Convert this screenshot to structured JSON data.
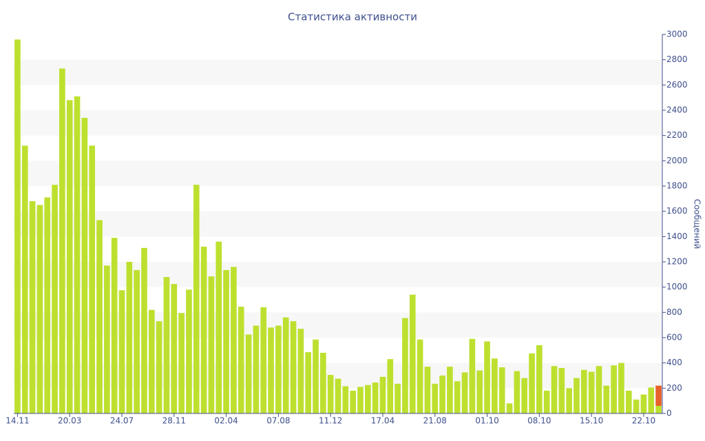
{
  "chart_data": {
    "type": "bar",
    "title": "Статистика активности",
    "y_axis_label": "Сообщений",
    "categories": [
      "14.11",
      null,
      null,
      null,
      null,
      null,
      null,
      "20.03",
      null,
      null,
      null,
      null,
      null,
      null,
      "24.07",
      null,
      null,
      null,
      null,
      null,
      null,
      "28.11",
      null,
      null,
      null,
      null,
      null,
      null,
      "02.04",
      null,
      null,
      null,
      null,
      null,
      null,
      "07.08",
      null,
      null,
      null,
      null,
      null,
      null,
      "11.12",
      null,
      null,
      null,
      null,
      null,
      null,
      "17.04",
      null,
      null,
      null,
      null,
      null,
      null,
      "21.08",
      null,
      null,
      null,
      null,
      null,
      null,
      "01.10",
      null,
      null,
      null,
      null,
      null,
      null,
      "08.10",
      null,
      null,
      null,
      null,
      null,
      null,
      "15.10",
      null,
      null,
      null,
      null,
      null,
      null,
      "22.10",
      null,
      null
    ],
    "series": [
      {
        "color": "#bde02f",
        "values": [
          2960,
          2120,
          1680,
          1650,
          1710,
          1810,
          2730,
          2480,
          2510,
          2340,
          2120,
          1530,
          1170,
          1390,
          975,
          1200,
          1135,
          1310,
          820,
          730,
          1080,
          1025,
          795,
          980,
          1810,
          1320,
          1085,
          1360,
          1135,
          1160,
          845,
          625,
          695,
          840,
          680,
          695,
          760,
          730,
          670,
          485,
          585,
          480,
          305,
          275,
          215,
          180,
          210,
          225,
          245,
          290,
          430,
          235,
          755,
          940,
          585,
          370,
          235,
          300,
          370,
          255,
          325,
          590,
          340,
          570,
          435,
          365,
          80,
          335,
          280,
          475,
          540,
          180,
          375,
          360,
          200,
          280,
          345,
          330,
          375,
          220,
          380,
          400,
          180,
          110,
          150,
          205,
          60
        ]
      },
      {
        "color": "#e8622c",
        "values": [
          null,
          null,
          null,
          null,
          null,
          null,
          null,
          null,
          null,
          null,
          null,
          null,
          null,
          null,
          null,
          null,
          null,
          null,
          null,
          null,
          null,
          null,
          null,
          null,
          null,
          null,
          null,
          null,
          null,
          null,
          null,
          null,
          null,
          null,
          null,
          null,
          null,
          null,
          null,
          null,
          null,
          null,
          null,
          null,
          null,
          null,
          null,
          null,
          null,
          null,
          null,
          null,
          null,
          null,
          null,
          null,
          null,
          null,
          null,
          null,
          null,
          null,
          null,
          null,
          null,
          null,
          null,
          null,
          null,
          null,
          null,
          null,
          null,
          null,
          null,
          null,
          null,
          null,
          null,
          null,
          null,
          null,
          null,
          null,
          null,
          null,
          160
        ]
      }
    ],
    "ylim": [
      0,
      3000
    ],
    "yticks": [
      0,
      200,
      400,
      600,
      800,
      1000,
      1200,
      1400,
      1600,
      1800,
      2000,
      2200,
      2400,
      2600,
      2800,
      3000
    ],
    "stacked": true,
    "grid_bands": true
  }
}
